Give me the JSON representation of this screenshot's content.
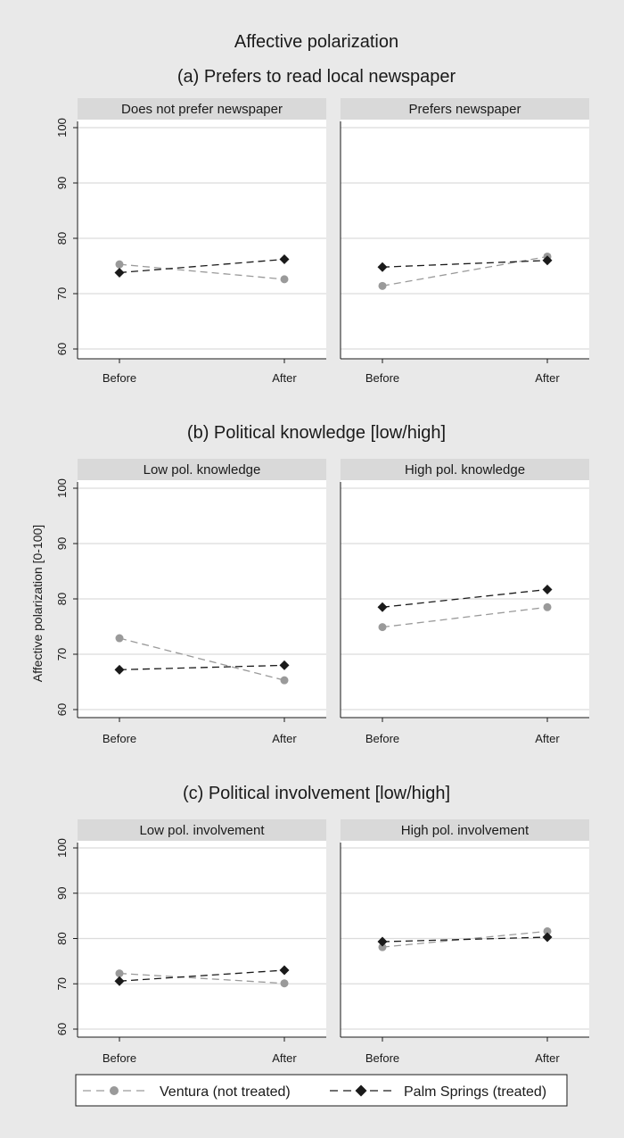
{
  "figure_title": "Affective polarization",
  "y_axis_label": "Affective polarization [0-100]",
  "legend": [
    {
      "label": "Ventura (not treated)",
      "color": "#9a9a9a",
      "marker": "circle",
      "line": "dashed"
    },
    {
      "label": "Palm Springs (treated)",
      "color": "#1a1a1a",
      "marker": "diamond",
      "line": "dashed"
    }
  ],
  "chart_data": [
    {
      "type": "line",
      "title": "(a) Prefers to read local newspaper",
      "panels": [
        {
          "label": "Does not prefer newspaper",
          "series": [
            {
              "name": "Ventura (not treated)",
              "values": [
                75.3,
                72.6
              ]
            },
            {
              "name": "Palm Springs (treated)",
              "values": [
                73.8,
                76.2
              ]
            }
          ]
        },
        {
          "label": "Prefers newspaper",
          "series": [
            {
              "name": "Ventura (not treated)",
              "values": [
                71.4,
                76.7
              ]
            },
            {
              "name": "Palm Springs (treated)",
              "values": [
                74.8,
                76.0
              ]
            }
          ]
        }
      ],
      "categories": [
        "Before",
        "After"
      ],
      "yticks": [
        60,
        70,
        80,
        90,
        100
      ],
      "ylim": [
        60,
        100
      ],
      "grid": true
    },
    {
      "type": "line",
      "title": "(b) Political knowledge [low/high]",
      "panels": [
        {
          "label": "Low pol. knowledge",
          "series": [
            {
              "name": "Ventura (not treated)",
              "values": [
                72.9,
                65.3
              ]
            },
            {
              "name": "Palm Springs (treated)",
              "values": [
                67.2,
                68.0
              ]
            }
          ]
        },
        {
          "label": "High pol. knowledge",
          "series": [
            {
              "name": "Ventura (not treated)",
              "values": [
                74.9,
                78.5
              ]
            },
            {
              "name": "Palm Springs (treated)",
              "values": [
                78.5,
                81.7
              ]
            }
          ]
        }
      ],
      "categories": [
        "Before",
        "After"
      ],
      "yticks": [
        60,
        70,
        80,
        90,
        100
      ],
      "ylim": [
        60,
        100
      ],
      "grid": true
    },
    {
      "type": "line",
      "title": "(c) Political involvement [low/high]",
      "panels": [
        {
          "label": "Low pol. involvement",
          "series": [
            {
              "name": "Ventura (not treated)",
              "values": [
                72.3,
                70.1
              ]
            },
            {
              "name": "Palm Springs (treated)",
              "values": [
                70.6,
                73.0
              ]
            }
          ]
        },
        {
          "label": "High pol. involvement",
          "series": [
            {
              "name": "Ventura (not treated)",
              "values": [
                78.1,
                81.6
              ]
            },
            {
              "name": "Palm Springs (treated)",
              "values": [
                79.3,
                80.3
              ]
            }
          ]
        }
      ],
      "categories": [
        "Before",
        "After"
      ],
      "yticks": [
        60,
        70,
        80,
        90,
        100
      ],
      "ylim": [
        60,
        100
      ],
      "grid": true
    }
  ]
}
